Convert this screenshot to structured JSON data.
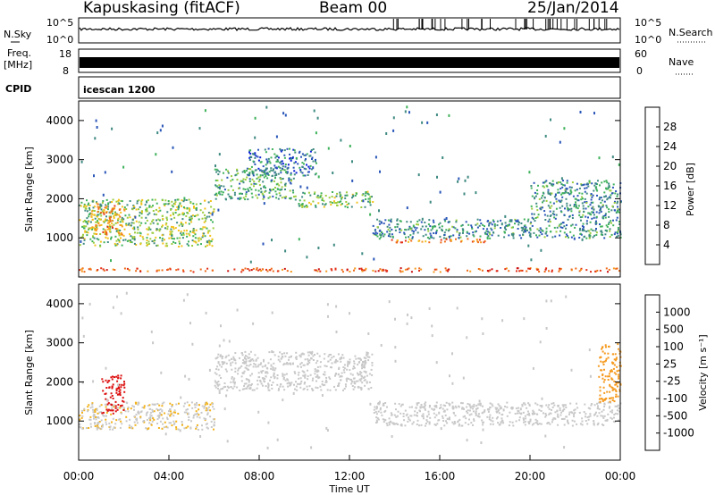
{
  "header": {
    "station": "Kapuskasing (fitACF)",
    "beam": "Beam 00",
    "date": "25/Jan/2014"
  },
  "side_labels": {
    "nsky": "N.Sky",
    "nsearch": "N.Search",
    "freq": "Freq.",
    "mhz": "[MHz]",
    "nave": "Nave",
    "cpid": "CPID"
  },
  "strips": {
    "noise_ticks_left": [
      "10^5",
      "10^0"
    ],
    "noise_ticks_right": [
      "10^5",
      "10^0"
    ],
    "freq_ticks": [
      "18",
      "8"
    ],
    "nave_ticks": [
      "60",
      "0"
    ],
    "cpid_text": "icescan 1200"
  },
  "axes": {
    "ylabel": "Slant Range [km]",
    "xlabel": "Time UT",
    "y_ticks": [
      "1000",
      "2000",
      "3000",
      "4000"
    ],
    "x_ticks": [
      "00:00",
      "04:00",
      "08:00",
      "12:00",
      "16:00",
      "20:00",
      "00:00"
    ]
  },
  "colorbars": {
    "power": {
      "label": "Power [dB]",
      "ticks": [
        "4",
        "8",
        "12",
        "16",
        "20",
        "24",
        "28"
      ],
      "colors": [
        "#0b1fd6",
        "#2a56b8",
        "#3f8a82",
        "#3fb25b",
        "#9ccc3d",
        "#f2c21b",
        "#f59a1f",
        "#ef6b1a",
        "#e33118",
        "#cc1010"
      ]
    },
    "velocity": {
      "label": "Velocity [m s⁻¹]",
      "ticks": [
        "1000",
        "500",
        "100",
        "25",
        "-25",
        "-100",
        "-500",
        "-1000"
      ],
      "colors": [
        "#1c2fc8",
        "#2f5fb0",
        "#3c8c8a",
        "#4dae4a",
        "#7fd14a",
        "#c8c8c8",
        "#c8c8c8",
        "#f2b21b",
        "#f59a1f",
        "#ef6b1a",
        "#e33118",
        "#dd1010"
      ]
    }
  },
  "chart_data": [
    {
      "type": "heatmap",
      "title": "Power",
      "xlabel": "Time UT",
      "ylabel": "Slant Range [km]",
      "xlim": [
        "00:00",
        "24:00"
      ],
      "ylim": [
        0,
        4500
      ],
      "colorbar": {
        "label": "Power [dB]",
        "range": [
          0,
          30
        ]
      },
      "echo_regions": [
        {
          "t_start": 0.0,
          "t_end": 6.0,
          "range_km": [
            800,
            2000
          ],
          "power_db": 12
        },
        {
          "t_start": 0.5,
          "t_end": 2.0,
          "range_km": [
            1100,
            1900
          ],
          "power_db": 20
        },
        {
          "t_start": 6.0,
          "t_end": 9.5,
          "range_km": [
            2000,
            2800
          ],
          "power_db": 10
        },
        {
          "t_start": 7.5,
          "t_end": 10.5,
          "range_km": [
            2600,
            3300
          ],
          "power_db": 6
        },
        {
          "t_start": 9.5,
          "t_end": 13.0,
          "range_km": [
            1800,
            2200
          ],
          "power_db": 12
        },
        {
          "t_start": 13.0,
          "t_end": 24.0,
          "range_km": [
            1000,
            1500
          ],
          "power_db": 8
        },
        {
          "t_start": 13.5,
          "t_end": 18.0,
          "range_km": [
            900,
            1000
          ],
          "power_db": 22
        },
        {
          "t_start": 20.0,
          "t_end": 24.0,
          "range_km": [
            1500,
            2500
          ],
          "power_db": 8
        },
        {
          "t_start": 0.0,
          "t_end": 24.0,
          "range_km": [
            150,
            250
          ],
          "power_db": 24
        }
      ]
    },
    {
      "type": "heatmap",
      "title": "Velocity",
      "xlabel": "Time UT",
      "ylabel": "Slant Range [km]",
      "xlim": [
        "00:00",
        "24:00"
      ],
      "ylim": [
        0,
        4500
      ],
      "colorbar": {
        "label": "Velocity [m s-1]",
        "range": [
          -1000,
          1000
        ]
      },
      "echo_regions": [
        {
          "t_start": 0.0,
          "t_end": 6.0,
          "range_km": [
            800,
            1500
          ],
          "velocity_ms": -150
        },
        {
          "t_start": 1.0,
          "t_end": 2.0,
          "range_km": [
            1200,
            2200
          ],
          "velocity_ms": -900
        },
        {
          "t_start": 6.0,
          "t_end": 13.0,
          "range_km": [
            1800,
            2800
          ],
          "velocity_ms": 0
        },
        {
          "t_start": 13.0,
          "t_end": 24.0,
          "range_km": [
            900,
            1500
          ],
          "velocity_ms": 0
        },
        {
          "t_start": 23.0,
          "t_end": 24.0,
          "range_km": [
            1500,
            3000
          ],
          "velocity_ms": -400
        }
      ]
    }
  ]
}
